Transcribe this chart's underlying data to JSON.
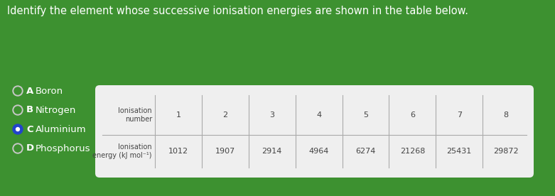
{
  "title": "Identify the element whose successive ionisation energies are shown in the table below.",
  "bg_color": "#3d9130",
  "row1_label_line1": "Ionisation",
  "row1_label_line2": "number",
  "row2_label_line1": "Ionisation",
  "row2_label_line2": "energy (kJ mol⁻¹)",
  "col_headers": [
    "1",
    "2",
    "3",
    "4",
    "5",
    "6",
    "7",
    "8"
  ],
  "values": [
    "1012",
    "1907",
    "2914",
    "4964",
    "6274",
    "21268",
    "25431",
    "29872"
  ],
  "options": [
    "A",
    "B",
    "C",
    "D"
  ],
  "option_labels": [
    "Boron",
    "Nitrogen",
    "Aluminium",
    "Phosphorus"
  ],
  "selected": 2,
  "dot_color_unselected": "#c8c8c8",
  "dot_color_selected": "#2244cc",
  "text_color_white": "#ffffff",
  "text_color_dark": "#444444",
  "title_fontsize": 10.5,
  "option_fontsize": 9.5,
  "table_label_fontsize": 7,
  "table_data_fontsize": 8
}
